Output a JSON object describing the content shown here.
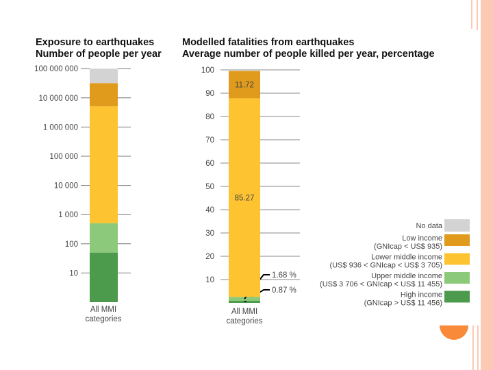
{
  "colors": {
    "no_data": "#d3d3d3",
    "low": "#e09a1c",
    "lower_middle": "#fdc331",
    "upper_middle": "#8dc97a",
    "high": "#4c9a4b",
    "accent": "#fcc9b4",
    "orange_dot": "#f98a3a"
  },
  "chart_data": [
    {
      "type": "bar",
      "stacked": true,
      "scale": "log",
      "title": "Exposure to earthquakes",
      "subtitle": "Number of people per year",
      "categories": [
        "All MMI categories"
      ],
      "category_lines": [
        "All MMI",
        "categories"
      ],
      "ylim": [
        1,
        100000000
      ],
      "ticks": [
        {
          "v": 100000000,
          "label": "100 000 000"
        },
        {
          "v": 10000000,
          "label": "10 000 000"
        },
        {
          "v": 1000000,
          "label": "1 000 000"
        },
        {
          "v": 100000,
          "label": "100 000"
        },
        {
          "v": 10000,
          "label": "10 000"
        },
        {
          "v": 1000,
          "label": "1 000"
        },
        {
          "v": 100,
          "label": "100"
        },
        {
          "v": 10,
          "label": "10"
        }
      ],
      "series_cumulative_top": [
        {
          "name": "High income",
          "value": 50,
          "color": "high"
        },
        {
          "name": "Upper middle income",
          "value": 510,
          "color": "upper_middle"
        },
        {
          "name": "Lower middle income",
          "value": 5100000,
          "color": "lower_middle"
        },
        {
          "name": "Low income",
          "value": 32000000,
          "color": "low"
        },
        {
          "name": "No data",
          "value": 100000000,
          "color": "no_data"
        }
      ]
    },
    {
      "type": "bar",
      "stacked": true,
      "title": "Modelled fatalities from earthquakes",
      "subtitle": "Average number of people killed per year, percentage",
      "categories": [
        "All MMI categories"
      ],
      "category_lines": [
        "All MMI",
        "categories"
      ],
      "ylim": [
        0,
        100
      ],
      "ticks": [
        100,
        90,
        80,
        70,
        60,
        50,
        40,
        30,
        20,
        10
      ],
      "series": [
        {
          "name": "High income",
          "value": 0.87,
          "color": "high",
          "label": "0.87 %"
        },
        {
          "name": "Upper middle income",
          "value": 1.68,
          "color": "upper_middle",
          "label": "1.68 %"
        },
        {
          "name": "Lower middle income",
          "value": 85.27,
          "color": "lower_middle",
          "label": "85.27"
        },
        {
          "name": "Low income",
          "value": 11.72,
          "color": "low",
          "label": "11.72"
        }
      ]
    }
  ],
  "legend": [
    {
      "lines": [
        "No data"
      ],
      "color": "no_data"
    },
    {
      "lines": [
        "Low income",
        "(GNIcap < US$ 935)"
      ],
      "color": "low"
    },
    {
      "lines": [
        "Lower middle income",
        "(US$ 936 < GNIcap < US$ 3 705)"
      ],
      "color": "lower_middle"
    },
    {
      "lines": [
        "Upper middle income",
        "(US$ 3 706 < GNIcap < US$ 11 455)"
      ],
      "color": "upper_middle"
    },
    {
      "lines": [
        "High income",
        "(GNIcap > US$ 11 456)"
      ],
      "color": "high"
    }
  ]
}
